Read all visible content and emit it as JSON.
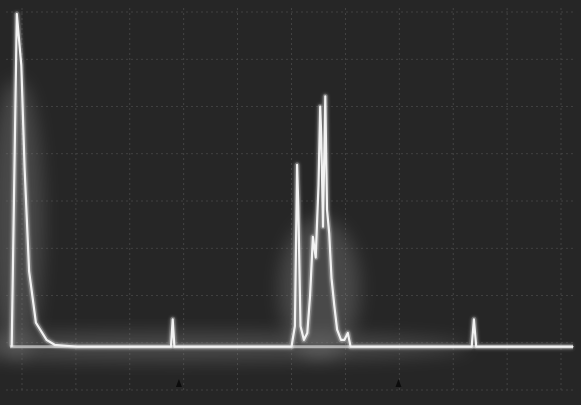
{
  "chart_data": {
    "type": "line",
    "title": "",
    "xlabel": "",
    "ylabel": "",
    "xlim": [
      0,
      100
    ],
    "ylim": [
      0,
      100
    ],
    "grid": true,
    "grid_divisions": {
      "x": 10,
      "y": 8
    },
    "baseline": 3,
    "axis_markers": [
      30,
      69
    ],
    "series": [
      {
        "values": [
          [
            0.3,
            3
          ],
          [
            1.2,
            100
          ],
          [
            2.0,
            85
          ],
          [
            2.6,
            55
          ],
          [
            3.4,
            25
          ],
          [
            4.6,
            10
          ],
          [
            6.5,
            5
          ],
          [
            8,
            3.5
          ],
          [
            12,
            3
          ],
          [
            28.6,
            3
          ],
          [
            28.9,
            11
          ],
          [
            29.2,
            3
          ],
          [
            50.0,
            3
          ],
          [
            50.6,
            9
          ],
          [
            51.0,
            56
          ],
          [
            51.2,
            44
          ],
          [
            51.6,
            9
          ],
          [
            52.2,
            5
          ],
          [
            52.8,
            7
          ],
          [
            53.3,
            18
          ],
          [
            53.8,
            35
          ],
          [
            54.3,
            29
          ],
          [
            54.8,
            50
          ],
          [
            55.1,
            73
          ],
          [
            55.3,
            64
          ],
          [
            55.6,
            38
          ],
          [
            56.0,
            76
          ],
          [
            56.3,
            43
          ],
          [
            56.7,
            36
          ],
          [
            57.1,
            23
          ],
          [
            57.6,
            15
          ],
          [
            58.1,
            8
          ],
          [
            58.8,
            5
          ],
          [
            59.4,
            5
          ],
          [
            60.0,
            7
          ],
          [
            60.5,
            3
          ],
          [
            82.0,
            3
          ],
          [
            82.4,
            11
          ],
          [
            82.8,
            3
          ],
          [
            100,
            3
          ]
        ]
      }
    ]
  },
  "colors": {
    "screen": "#262626",
    "trace": "#f2f2f2",
    "grid": "#4a4a4a",
    "paper": "#ffffff"
  }
}
